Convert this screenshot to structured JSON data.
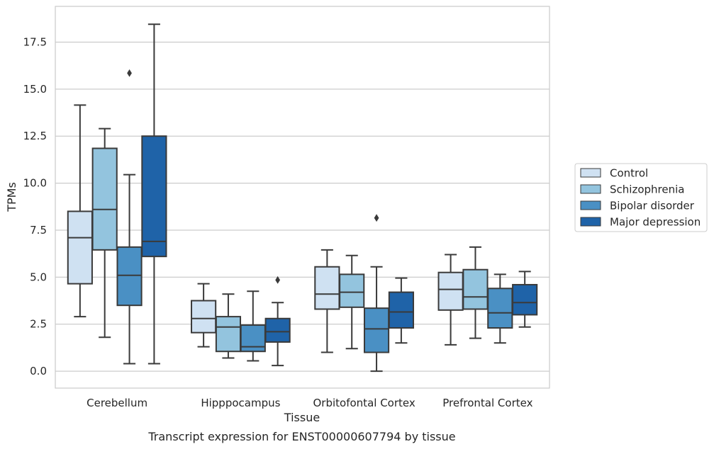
{
  "caption": "Transcript expression for ENST00000607794 by tissue",
  "chart_data": {
    "type": "box",
    "title": "",
    "xlabel": "Tissue",
    "ylabel": "TPMs",
    "ylim": [
      -0.9,
      19.4
    ],
    "yticks": [
      0.0,
      2.5,
      5.0,
      7.5,
      10.0,
      12.5,
      15.0,
      17.5
    ],
    "ytick_labels": [
      "0.0",
      "2.5",
      "5.0",
      "7.5",
      "10.0",
      "12.5",
      "15.0",
      "17.5"
    ],
    "grid": "horizontal",
    "legend_position": "right",
    "categories": [
      "Cerebellum",
      "Hipppocampus",
      "Orbitofontal Cortex",
      "Prefrontal Cortex"
    ],
    "series": [
      {
        "name": "Control",
        "color": "#cfe1f2",
        "boxes": [
          {
            "whislo": 2.9,
            "q1": 4.65,
            "med": 7.1,
            "q3": 8.5,
            "whishi": 14.15,
            "fliers": []
          },
          {
            "whislo": 1.3,
            "q1": 2.05,
            "med": 2.8,
            "q3": 3.75,
            "whishi": 4.65,
            "fliers": []
          },
          {
            "whislo": 1.0,
            "q1": 3.3,
            "med": 4.1,
            "q3": 5.55,
            "whishi": 6.45,
            "fliers": []
          },
          {
            "whislo": 1.4,
            "q1": 3.25,
            "med": 4.35,
            "q3": 5.25,
            "whishi": 6.2,
            "fliers": []
          }
        ]
      },
      {
        "name": "Schizophrenia",
        "color": "#93c4de",
        "boxes": [
          {
            "whislo": 1.8,
            "q1": 6.45,
            "med": 8.6,
            "q3": 11.85,
            "whishi": 12.9,
            "fliers": []
          },
          {
            "whislo": 0.7,
            "q1": 1.05,
            "med": 2.35,
            "q3": 2.9,
            "whishi": 4.1,
            "fliers": []
          },
          {
            "whislo": 1.2,
            "q1": 3.4,
            "med": 4.2,
            "q3": 5.15,
            "whishi": 6.15,
            "fliers": []
          },
          {
            "whislo": 1.75,
            "q1": 3.3,
            "med": 3.95,
            "q3": 5.4,
            "whishi": 6.6,
            "fliers": []
          }
        ]
      },
      {
        "name": "Bipolar disorder",
        "color": "#4a90c4",
        "boxes": [
          {
            "whislo": 0.4,
            "q1": 3.5,
            "med": 5.1,
            "q3": 6.6,
            "whishi": 10.45,
            "fliers": [
              15.85
            ]
          },
          {
            "whislo": 0.55,
            "q1": 1.05,
            "med": 1.3,
            "q3": 2.45,
            "whishi": 4.25,
            "fliers": []
          },
          {
            "whislo": 0.0,
            "q1": 1.0,
            "med": 2.25,
            "q3": 3.35,
            "whishi": 5.55,
            "fliers": [
              8.15
            ]
          },
          {
            "whislo": 1.5,
            "q1": 2.3,
            "med": 3.1,
            "q3": 4.4,
            "whishi": 5.15,
            "fliers": []
          }
        ]
      },
      {
        "name": "Major depression",
        "color": "#1f63a8",
        "boxes": [
          {
            "whislo": 0.4,
            "q1": 6.1,
            "med": 6.9,
            "q3": 12.5,
            "whishi": 18.45,
            "fliers": []
          },
          {
            "whislo": 0.3,
            "q1": 1.55,
            "med": 2.1,
            "q3": 2.8,
            "whishi": 3.65,
            "fliers": [
              4.85
            ]
          },
          {
            "whislo": 1.5,
            "q1": 2.3,
            "med": 3.15,
            "q3": 4.2,
            "whishi": 4.95,
            "fliers": []
          },
          {
            "whislo": 2.35,
            "q1": 3.0,
            "med": 3.65,
            "q3": 4.6,
            "whishi": 5.3,
            "fliers": []
          }
        ]
      }
    ]
  }
}
